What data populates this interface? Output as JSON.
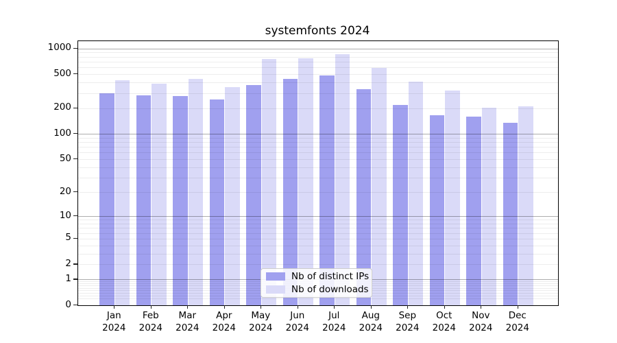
{
  "chart_data": {
    "type": "bar",
    "title": "systemfonts 2024",
    "categories": [
      "Jan",
      "Feb",
      "Mar",
      "Apr",
      "May",
      "Jun",
      "Jul",
      "Aug",
      "Sep",
      "Oct",
      "Nov",
      "Dec"
    ],
    "category_year": "2024",
    "series": [
      {
        "name": "Nb of distinct IPs",
        "color": "#a0a0ef",
        "values": [
          300,
          282,
          277,
          254,
          377,
          441,
          483,
          334,
          220,
          164,
          159,
          136
        ]
      },
      {
        "name": "Nb of downloads",
        "color": "#dadaf8",
        "values": [
          427,
          391,
          441,
          355,
          748,
          767,
          858,
          592,
          409,
          323,
          203,
          210
        ]
      }
    ],
    "xlabel": "",
    "ylabel": "",
    "yscale": "log1p",
    "yticks": [
      0,
      1,
      2,
      5,
      10,
      20,
      50,
      100,
      200,
      500,
      1000
    ],
    "ylim": [
      0,
      1220
    ],
    "grid": {
      "minor_gridlines": true,
      "major_gridline_values": [
        1,
        10,
        100,
        1000
      ]
    },
    "legend_position": "lower center"
  }
}
